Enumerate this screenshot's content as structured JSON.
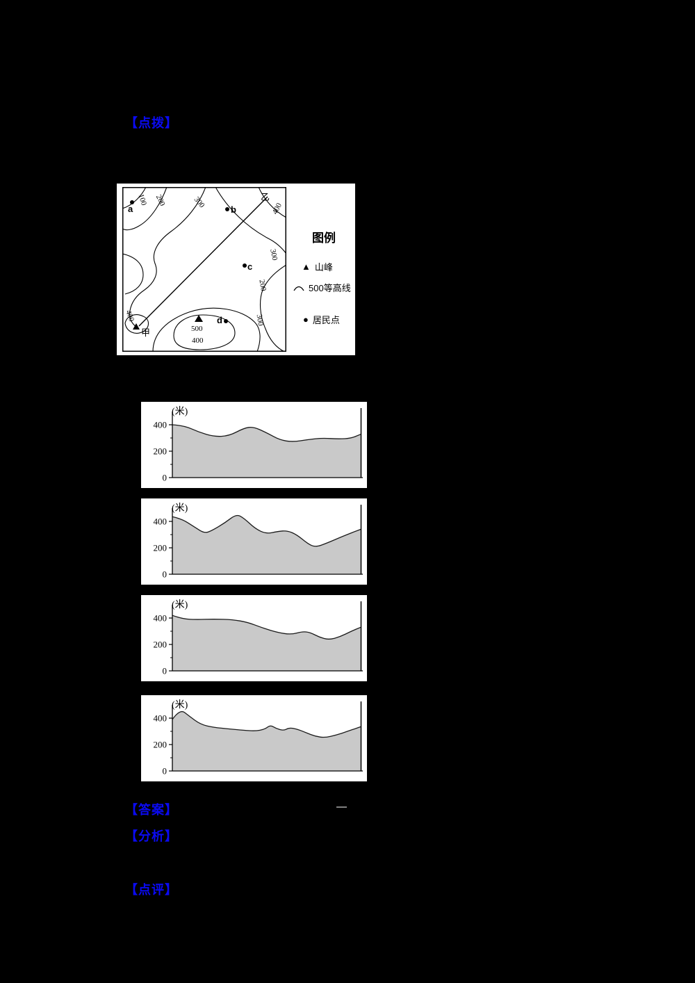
{
  "page": {
    "background": "#000000",
    "accent_blue": "#0a0af2"
  },
  "labels": {
    "hint": "【点拨】",
    "answer": "【答案】",
    "answer_value": "—",
    "analysis": "【分析】",
    "comment": "【点评】"
  },
  "map": {
    "labels": [
      "100",
      "200",
      "300",
      "400",
      "300",
      "200",
      "300",
      "400",
      "500",
      "400",
      "a",
      "b",
      "c",
      "d",
      "甲",
      "乙"
    ],
    "section_line": {
      "start": "甲",
      "end": "乙"
    },
    "peak_elevation": "500",
    "legend": {
      "title": "图例",
      "items": [
        {
          "icon": "peak-icon",
          "label": "山峰"
        },
        {
          "icon": "contour-icon",
          "label": "500等高线"
        },
        {
          "icon": "settlement-icon",
          "label": "居民点"
        }
      ]
    }
  },
  "chart_data": [
    {
      "type": "area",
      "ylabel": "(米)",
      "yticks": [
        0,
        200,
        400
      ],
      "ylim": [
        0,
        520
      ],
      "x_range": [
        0,
        1
      ],
      "fill": "#c9c9c9",
      "points": [
        [
          0,
          400
        ],
        [
          0.06,
          395
        ],
        [
          0.14,
          345
        ],
        [
          0.22,
          310
        ],
        [
          0.3,
          315
        ],
        [
          0.38,
          375
        ],
        [
          0.43,
          385
        ],
        [
          0.5,
          340
        ],
        [
          0.57,
          285
        ],
        [
          0.64,
          270
        ],
        [
          0.72,
          288
        ],
        [
          0.8,
          300
        ],
        [
          0.88,
          292
        ],
        [
          0.95,
          298
        ],
        [
          1,
          328
        ]
      ]
    },
    {
      "type": "area",
      "ylabel": "(米)",
      "yticks": [
        0,
        200,
        400
      ],
      "ylim": [
        0,
        520
      ],
      "x_range": [
        0,
        1
      ],
      "fill": "#c9c9c9",
      "points": [
        [
          0,
          435
        ],
        [
          0.05,
          420
        ],
        [
          0.12,
          355
        ],
        [
          0.17,
          310
        ],
        [
          0.21,
          330
        ],
        [
          0.28,
          390
        ],
        [
          0.34,
          455
        ],
        [
          0.38,
          425
        ],
        [
          0.44,
          345
        ],
        [
          0.5,
          305
        ],
        [
          0.56,
          325
        ],
        [
          0.61,
          330
        ],
        [
          0.66,
          300
        ],
        [
          0.72,
          230
        ],
        [
          0.76,
          205
        ],
        [
          0.82,
          235
        ],
        [
          0.9,
          285
        ],
        [
          1,
          340
        ]
      ]
    },
    {
      "type": "area",
      "ylabel": "(米)",
      "yticks": [
        0,
        200,
        400
      ],
      "ylim": [
        0,
        520
      ],
      "x_range": [
        0,
        1
      ],
      "fill": "#c9c9c9",
      "points": [
        [
          0,
          420
        ],
        [
          0.05,
          395
        ],
        [
          0.12,
          388
        ],
        [
          0.22,
          392
        ],
        [
          0.32,
          388
        ],
        [
          0.4,
          368
        ],
        [
          0.48,
          325
        ],
        [
          0.56,
          290
        ],
        [
          0.63,
          275
        ],
        [
          0.69,
          298
        ],
        [
          0.73,
          292
        ],
        [
          0.78,
          255
        ],
        [
          0.83,
          235
        ],
        [
          0.89,
          258
        ],
        [
          0.95,
          300
        ],
        [
          1,
          330
        ]
      ]
    },
    {
      "type": "area",
      "ylabel": "(米)",
      "yticks": [
        0,
        200,
        400
      ],
      "ylim": [
        0,
        520
      ],
      "x_range": [
        0,
        1
      ],
      "fill": "#c9c9c9",
      "points": [
        [
          0,
          390
        ],
        [
          0.04,
          470
        ],
        [
          0.09,
          415
        ],
        [
          0.15,
          352
        ],
        [
          0.22,
          330
        ],
        [
          0.3,
          318
        ],
        [
          0.38,
          308
        ],
        [
          0.44,
          302
        ],
        [
          0.49,
          315
        ],
        [
          0.52,
          348
        ],
        [
          0.55,
          322
        ],
        [
          0.59,
          305
        ],
        [
          0.62,
          328
        ],
        [
          0.66,
          318
        ],
        [
          0.71,
          290
        ],
        [
          0.76,
          262
        ],
        [
          0.81,
          252
        ],
        [
          0.87,
          272
        ],
        [
          0.93,
          300
        ],
        [
          1,
          335
        ]
      ]
    }
  ]
}
